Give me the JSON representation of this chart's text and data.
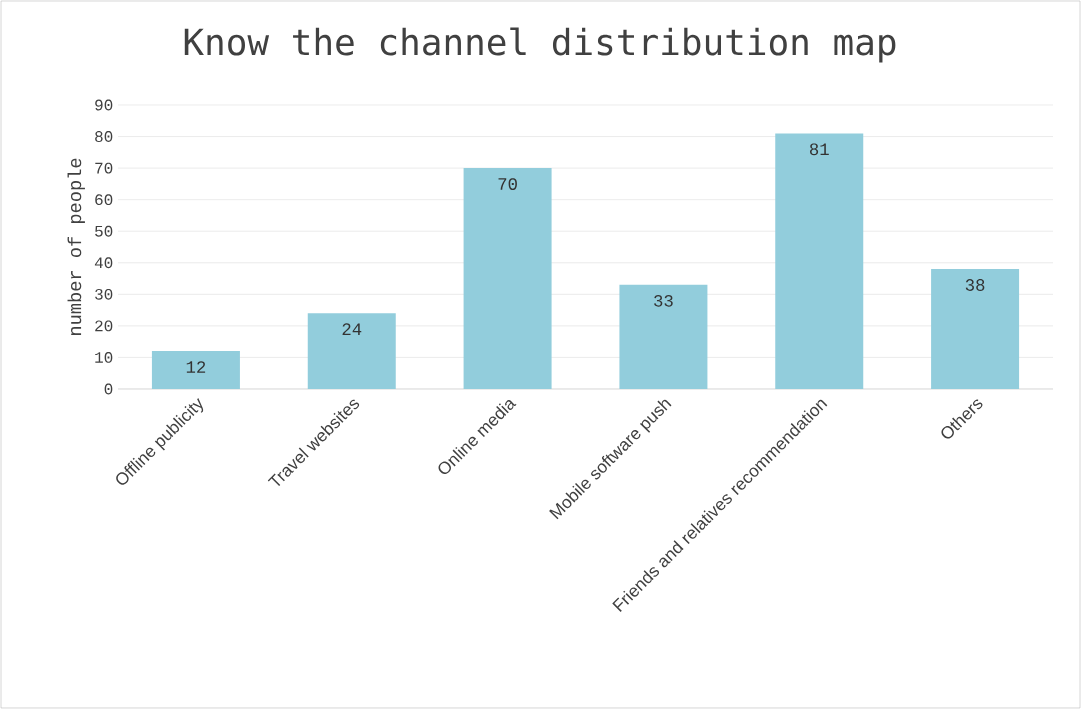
{
  "chart_data": {
    "type": "bar",
    "title": "Know the channel distribution map",
    "ylabel": "number of people",
    "categories": [
      "Offline publicity",
      "Travel websites",
      "Online media",
      "Mobile software push",
      "Friends and relatives recommendation",
      "Others"
    ],
    "values": [
      12,
      24,
      70,
      33,
      81,
      38
    ],
    "color": "#92cddc",
    "ylim": [
      0,
      90
    ],
    "yticks": [
      0,
      10,
      20,
      30,
      40,
      50,
      60,
      70,
      80,
      90
    ],
    "grid": "y",
    "data_labels": true
  }
}
